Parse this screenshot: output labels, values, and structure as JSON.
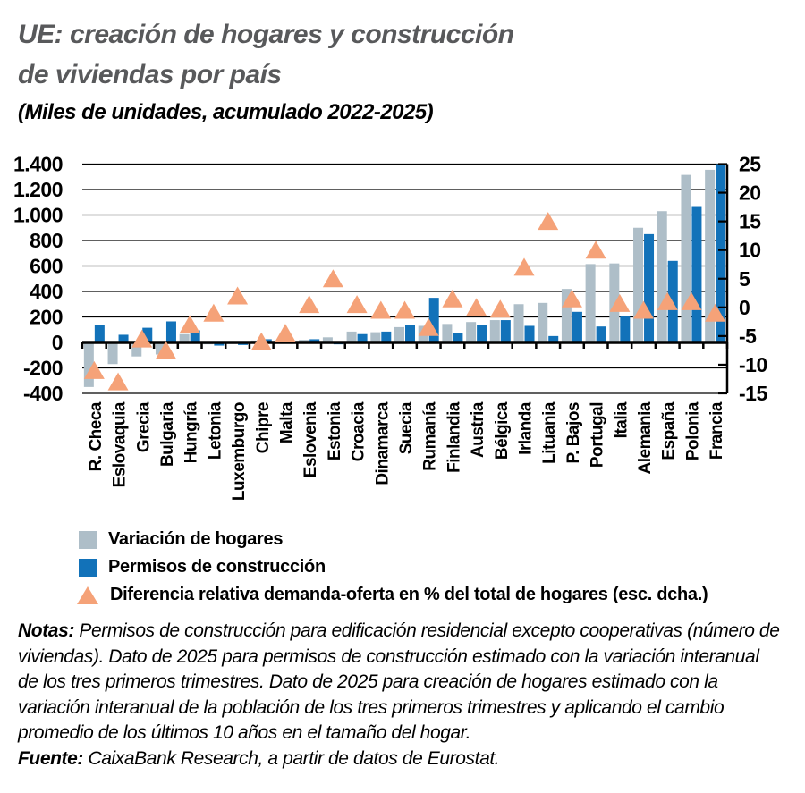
{
  "header": {
    "title_lines": [
      "UE: creación de hogares y construcción",
      "de viviendas por país"
    ],
    "subtitle": "(Miles de unidades, acumulado 2022-2025)"
  },
  "colors": {
    "households": "#AEBEC8",
    "permits": "#1272B9",
    "triangle": "#F5A278",
    "title": "#58595B",
    "axis": "#000000",
    "background": "#FFFFFF"
  },
  "chart_data": {
    "type": "bar",
    "title": "UE: creación de hogares y construcción de viviendas por país",
    "subtitle": "(Miles de unidades, acumulado 2022-2025)",
    "categories": [
      "R. Checa",
      "Eslovaquia",
      "Grecia",
      "Bulgaria",
      "Hungría",
      "Letonia",
      "Luxemburgo",
      "Chipre",
      "Malta",
      "Eslovenia",
      "Estonia",
      "Croacia",
      "Dinamarca",
      "Suecia",
      "Rumanía",
      "Finlandia",
      "Austria",
      "Bélgica",
      "Irlanda",
      "Lituania",
      "P. Bajos",
      "Portugal",
      "Italia",
      "Alemania",
      "España",
      "Polonia",
      "Francia"
    ],
    "series": [
      {
        "name": "Variación de hogares",
        "type": "bar",
        "axis": "left",
        "values": [
          -350,
          -170,
          -110,
          -95,
          65,
          -15,
          -12,
          15,
          15,
          20,
          40,
          85,
          80,
          120,
          130,
          145,
          160,
          175,
          300,
          310,
          420,
          615,
          620,
          900,
          1030,
          1315,
          1355
        ]
      },
      {
        "name": "Permisos de construcción",
        "type": "bar",
        "axis": "left",
        "values": [
          135,
          60,
          115,
          165,
          95,
          -25,
          -20,
          25,
          10,
          25,
          -15,
          65,
          85,
          135,
          350,
          75,
          135,
          175,
          130,
          50,
          240,
          125,
          210,
          850,
          640,
          1070,
          1400
        ]
      },
      {
        "name": "Diferencia relativa demanda-oferta en % del total de hogares (esc. dcha.)",
        "type": "triangle",
        "axis": "right",
        "values": [
          -11,
          -13,
          -5.5,
          -7.5,
          -3,
          -1,
          2,
          -6,
          -4.5,
          0.5,
          5,
          0.5,
          -0.5,
          -0.5,
          -3.5,
          1.5,
          0,
          -0.3,
          7,
          15,
          1.5,
          10,
          0.7,
          -0.5,
          1,
          1,
          -1
        ]
      }
    ],
    "left_axis": {
      "min": -400,
      "max": 1400,
      "step": 200,
      "ticks": [
        {
          "v": 1400,
          "label": "1.400"
        },
        {
          "v": 1200,
          "label": "1.200"
        },
        {
          "v": 1000,
          "label": "1.000"
        },
        {
          "v": 800,
          "label": "800"
        },
        {
          "v": 600,
          "label": "600"
        },
        {
          "v": 400,
          "label": "400"
        },
        {
          "v": 200,
          "label": "200"
        },
        {
          "v": 0,
          "label": "0"
        },
        {
          "v": -200,
          "label": "-200"
        },
        {
          "v": -400,
          "label": "-400"
        }
      ]
    },
    "right_axis": {
      "min": -15,
      "max": 25,
      "step": 5,
      "ticks": [
        {
          "v": 25,
          "label": "25"
        },
        {
          "v": 20,
          "label": "20"
        },
        {
          "v": 15,
          "label": "15"
        },
        {
          "v": 10,
          "label": "10"
        },
        {
          "v": 5,
          "label": "5"
        },
        {
          "v": 0,
          "label": "0"
        },
        {
          "v": -5,
          "label": "-5"
        },
        {
          "v": -10,
          "label": "-10"
        },
        {
          "v": -15,
          "label": "-15"
        }
      ]
    },
    "grid": true,
    "legend_position": "bottom-left"
  },
  "notes": {
    "label": "Notas:",
    "text": "Permisos de construcción para edificación residencial excepto cooperativas (número de viviendas). Dato de 2025 para permisos de construcción estimado con la variación interanual de los tres primeros trimestres. Dato de 2025 para creación de hogares estimado con la variación interanual de la población de los tres primeros trimestres y aplicando el cambio promedio de los últimos 10 años en el tamaño del hogar.",
    "source_label": "Fuente:",
    "source_text": "CaixaBank Research, a partir de datos de Eurostat."
  }
}
